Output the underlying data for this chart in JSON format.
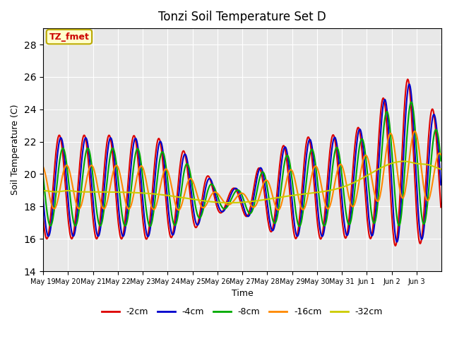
{
  "title": "Tonzi Soil Temperature Set D",
  "xlabel": "Time",
  "ylabel": "Soil Temperature (C)",
  "ylim": [
    14,
    29
  ],
  "yticks": [
    14,
    16,
    18,
    20,
    22,
    24,
    26,
    28
  ],
  "annotation_text": "TZ_fmet",
  "annotation_bg": "#ffffcc",
  "annotation_border": "#bbaa00",
  "bg_color": "#e8e8e8",
  "colors": {
    "-2cm": "#dd0000",
    "-4cm": "#0000cc",
    "-8cm": "#00aa00",
    "-16cm": "#ff8800",
    "-32cm": "#cccc00"
  },
  "legend_labels": [
    "-2cm",
    "-4cm",
    "-8cm",
    "-16cm",
    "-32cm"
  ],
  "line_width": 1.5,
  "tick_labels": [
    "May 19",
    "May 20",
    "May 21",
    "May 22",
    "May 23",
    "May 24",
    "May 25",
    "May 26",
    "May 27",
    "May 28",
    "May 29",
    "May 30",
    "May 31",
    "Jun 1",
    "Jun 2",
    "Jun 3"
  ],
  "tick_positions": [
    0,
    1,
    2,
    3,
    4,
    5,
    6,
    7,
    8,
    9,
    10,
    11,
    12,
    13,
    14,
    15
  ]
}
